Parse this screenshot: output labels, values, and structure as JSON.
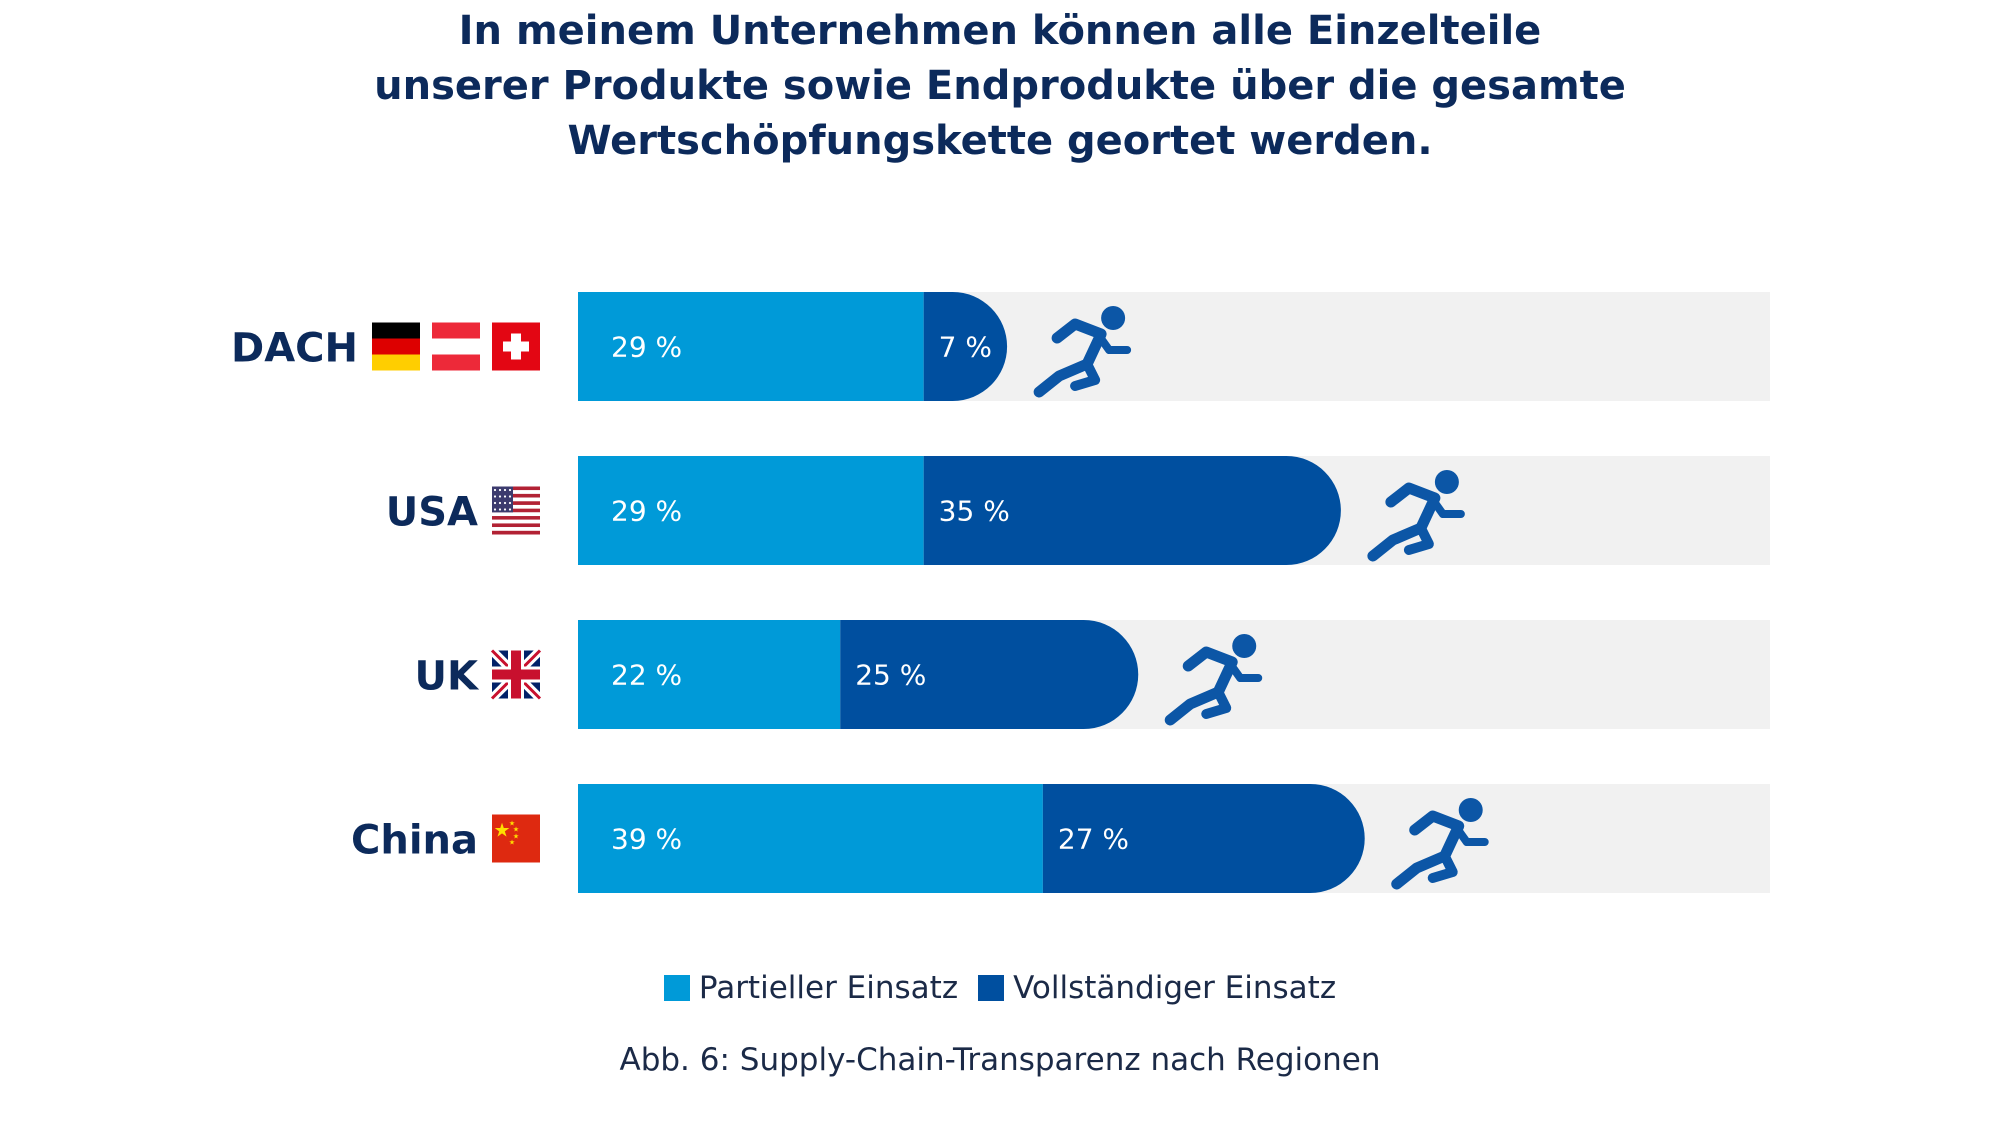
{
  "title_lines": [
    "In meinem Unternehmen können alle Einzelteile",
    "unserer Produkte sowie Endprodukte über die gesamte",
    "Wertschöpfungskette geortet werden."
  ],
  "caption": "Abb. 6: Supply-Chain-Transparenz nach Regionen",
  "colors": {
    "partial": "#009ad8",
    "full": "#004f9f",
    "track": "#f1f1f1",
    "text": "#0c2a5b",
    "icon": "#0c56a6"
  },
  "icon": "runner-icon",
  "chart_data": {
    "type": "bar",
    "orientation": "horizontal",
    "stacked": true,
    "categories": [
      "DACH",
      "USA",
      "UK",
      "China"
    ],
    "category_flags": [
      [
        "germany-flag",
        "austria-flag",
        "switzerland-flag"
      ],
      [
        "usa-flag"
      ],
      [
        "uk-flag"
      ],
      [
        "china-flag"
      ]
    ],
    "series": [
      {
        "name": "Partieller Einsatz",
        "values": [
          29,
          29,
          22,
          39
        ],
        "labels": [
          "29 %",
          "29 %",
          "22 %",
          "39 %"
        ]
      },
      {
        "name": "Vollständiger Einsatz",
        "values": [
          7,
          35,
          25,
          27
        ],
        "labels": [
          "7 %",
          "35 %",
          "25 %",
          "27 %"
        ]
      }
    ],
    "xlim": [
      0,
      100
    ],
    "legend_position": "bottom",
    "grid": false
  }
}
